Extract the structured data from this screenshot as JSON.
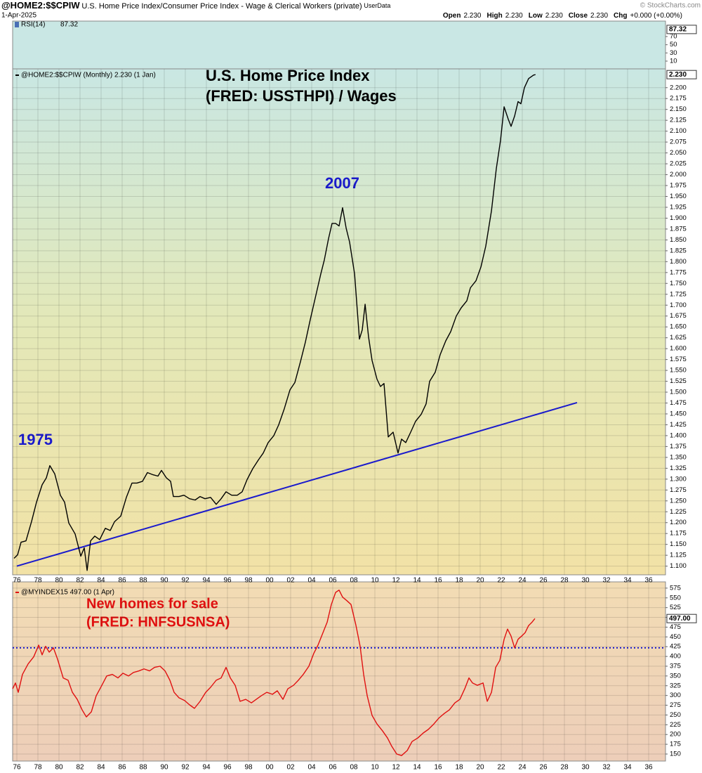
{
  "header": {
    "symbol": "@HOME2:$$CPIW",
    "description": "U.S. Home Price Index/Consumer Price Index - Wage & Clerical Workers (private)",
    "source": "UserData",
    "date": "1-Apr-2025",
    "copyright": "© StockCharts.com",
    "quote": [
      {
        "label": "Open",
        "value": "2.230"
      },
      {
        "label": "High",
        "value": "2.230"
      },
      {
        "label": "Low",
        "value": "2.230"
      },
      {
        "label": "Close",
        "value": "2.230"
      },
      {
        "label": "Chg",
        "value": "+0.000 (+0.00%)"
      }
    ]
  },
  "chart_data": [
    {
      "type": "indicator",
      "name": "RSI(14)",
      "last": 87.32,
      "ylim": [
        0,
        100
      ],
      "yticks": [
        70,
        50,
        30,
        10
      ],
      "grid": false
    },
    {
      "type": "line",
      "grid": true,
      "annotations": [
        "U.S. Home Price Index",
        "(FRED: USSTHPI) / Wages",
        "2007",
        "1975"
      ],
      "xlim": [
        1975.6,
        2037.6
      ],
      "ylim": [
        1.08,
        2.24
      ],
      "xticks": [
        {
          "value": 1976,
          "label": "76"
        },
        {
          "value": 1978,
          "label": "78"
        },
        {
          "value": 1980,
          "label": "80"
        },
        {
          "value": 1982,
          "label": "82"
        },
        {
          "value": 1984,
          "label": "84"
        },
        {
          "value": 1986,
          "label": "86"
        },
        {
          "value": 1988,
          "label": "88"
        },
        {
          "value": 1990,
          "label": "90"
        },
        {
          "value": 1992,
          "label": "92"
        },
        {
          "value": 1994,
          "label": "94"
        },
        {
          "value": 1996,
          "label": "96"
        },
        {
          "value": 1998,
          "label": "98"
        },
        {
          "value": 2000,
          "label": "00"
        },
        {
          "value": 2002,
          "label": "02"
        },
        {
          "value": 2004,
          "label": "04"
        },
        {
          "value": 2006,
          "label": "06"
        },
        {
          "value": 2008,
          "label": "08"
        },
        {
          "value": 2010,
          "label": "10"
        },
        {
          "value": 2012,
          "label": "12"
        },
        {
          "value": 2014,
          "label": "14"
        },
        {
          "value": 2016,
          "label": "16"
        },
        {
          "value": 2018,
          "label": "18"
        },
        {
          "value": 2020,
          "label": "20"
        },
        {
          "value": 2022,
          "label": "22"
        },
        {
          "value": 2024,
          "label": "24"
        },
        {
          "value": 2026,
          "label": "26"
        },
        {
          "value": 2028,
          "label": "28"
        },
        {
          "value": 2030,
          "label": "30"
        },
        {
          "value": 2032,
          "label": "32"
        },
        {
          "value": 2034,
          "label": "34"
        },
        {
          "value": 2036,
          "label": "36"
        }
      ],
      "yticks": [
        {
          "value": 1.1,
          "label": "1.100"
        },
        {
          "value": 1.125,
          "label": "1.125"
        },
        {
          "value": 1.15,
          "label": "1.150"
        },
        {
          "value": 1.175,
          "label": "1.175"
        },
        {
          "value": 1.2,
          "label": "1.200"
        },
        {
          "value": 1.225,
          "label": "1.225"
        },
        {
          "value": 1.25,
          "label": "1.250"
        },
        {
          "value": 1.275,
          "label": "1.275"
        },
        {
          "value": 1.3,
          "label": "1.300"
        },
        {
          "value": 1.325,
          "label": "1.325"
        },
        {
          "value": 1.35,
          "label": "1.350"
        },
        {
          "value": 1.375,
          "label": "1.375"
        },
        {
          "value": 1.4,
          "label": "1.400"
        },
        {
          "value": 1.425,
          "label": "1.425"
        },
        {
          "value": 1.45,
          "label": "1.450"
        },
        {
          "value": 1.475,
          "label": "1.475"
        },
        {
          "value": 1.5,
          "label": "1.500"
        },
        {
          "value": 1.525,
          "label": "1.525"
        },
        {
          "value": 1.55,
          "label": "1.550"
        },
        {
          "value": 1.575,
          "label": "1.575"
        },
        {
          "value": 1.6,
          "label": "1.600"
        },
        {
          "value": 1.625,
          "label": "1.625"
        },
        {
          "value": 1.65,
          "label": "1.650"
        },
        {
          "value": 1.675,
          "label": "1.675"
        },
        {
          "value": 1.7,
          "label": "1.700"
        },
        {
          "value": 1.725,
          "label": "1.725"
        },
        {
          "value": 1.75,
          "label": "1.750"
        },
        {
          "value": 1.775,
          "label": "1.775"
        },
        {
          "value": 1.8,
          "label": "1.800"
        },
        {
          "value": 1.825,
          "label": "1.825"
        },
        {
          "value": 1.85,
          "label": "1.850"
        },
        {
          "value": 1.875,
          "label": "1.875"
        },
        {
          "value": 1.9,
          "label": "1.900"
        },
        {
          "value": 1.925,
          "label": "1.925"
        },
        {
          "value": 1.95,
          "label": "1.950"
        },
        {
          "value": 1.975,
          "label": "1.975"
        },
        {
          "value": 2.0,
          "label": "2.000"
        },
        {
          "value": 2.025,
          "label": "2.025"
        },
        {
          "value": 2.05,
          "label": "2.050"
        },
        {
          "value": 2.075,
          "label": "2.075"
        },
        {
          "value": 2.1,
          "label": "2.100"
        },
        {
          "value": 2.125,
          "label": "2.125"
        },
        {
          "value": 2.15,
          "label": "2.150"
        },
        {
          "value": 2.175,
          "label": "2.175"
        },
        {
          "value": 2.2,
          "label": "2.200"
        }
      ],
      "last": {
        "value": 2.23,
        "label": "2.230"
      },
      "x": [
        1975.73,
        1976.07,
        1976.4,
        1976.87,
        1977.4,
        1977.87,
        1978.4,
        1978.8,
        1979.13,
        1979.6,
        1980.13,
        1980.53,
        1980.93,
        1981.53,
        1982.07,
        1982.4,
        1982.67,
        1983,
        1983.4,
        1983.87,
        1984.4,
        1984.87,
        1985.27,
        1985.87,
        1986.4,
        1986.93,
        1987.4,
        1987.93,
        1988.4,
        1988.93,
        1989.4,
        1989.73,
        1990.2,
        1990.6,
        1990.87,
        1991.4,
        1991.87,
        1992.4,
        1992.93,
        1993.4,
        1993.87,
        1994.4,
        1994.93,
        1995.4,
        1995.87,
        1996.4,
        1996.93,
        1997.4,
        1997.87,
        1998.4,
        1998.93,
        1999.4,
        1999.87,
        2000.4,
        2000.87,
        2001.4,
        2001.93,
        2002.4,
        2002.93,
        2003.4,
        2003.87,
        2004.4,
        2004.87,
        2005.2,
        2005.6,
        2005.93,
        2006.27,
        2006.6,
        2006.93,
        2007.27,
        2007.6,
        2008.07,
        2008.53,
        2008.8,
        2009.07,
        2009.4,
        2009.73,
        2010.2,
        2010.53,
        2010.87,
        2011.27,
        2011.73,
        2012.2,
        2012.53,
        2012.93,
        2013.4,
        2013.87,
        2014.4,
        2014.87,
        2015.2,
        2015.73,
        2016.2,
        2016.73,
        2017.2,
        2017.73,
        2018.2,
        2018.73,
        2019.07,
        2019.6,
        2020.07,
        2020.53,
        2021.07,
        2021.53,
        2021.93,
        2022.27,
        2022.67,
        2022.93,
        2023.27,
        2023.6,
        2023.87,
        2024.2,
        2024.6,
        2025.07,
        2025.25
      ],
      "series": [
        {
          "name": "@HOME2:$$CPIW (Monthly) 2.230 (1 Jan)",
          "color": "#000000",
          "values": [
            1.118,
            1.126,
            1.155,
            1.158,
            1.203,
            1.247,
            1.287,
            1.303,
            1.331,
            1.312,
            1.263,
            1.247,
            1.199,
            1.174,
            1.123,
            1.142,
            1.09,
            1.158,
            1.169,
            1.161,
            1.187,
            1.182,
            1.202,
            1.215,
            1.258,
            1.291,
            1.291,
            1.295,
            1.315,
            1.31,
            1.307,
            1.32,
            1.303,
            1.295,
            1.26,
            1.26,
            1.263,
            1.255,
            1.252,
            1.26,
            1.255,
            1.258,
            1.242,
            1.255,
            1.271,
            1.263,
            1.263,
            1.271,
            1.299,
            1.324,
            1.344,
            1.36,
            1.384,
            1.4,
            1.425,
            1.462,
            1.505,
            1.522,
            1.57,
            1.615,
            1.667,
            1.723,
            1.772,
            1.804,
            1.853,
            1.888,
            1.888,
            1.882,
            1.924,
            1.877,
            1.845,
            1.772,
            1.622,
            1.643,
            1.702,
            1.627,
            1.573,
            1.53,
            1.513,
            1.52,
            1.397,
            1.408,
            1.36,
            1.392,
            1.384,
            1.408,
            1.433,
            1.449,
            1.473,
            1.525,
            1.546,
            1.586,
            1.618,
            1.639,
            1.675,
            1.694,
            1.71,
            1.74,
            1.756,
            1.788,
            1.836,
            1.917,
            2.014,
            2.079,
            2.156,
            2.127,
            2.111,
            2.135,
            2.168,
            2.163,
            2.2,
            2.221,
            2.229,
            2.23
          ]
        }
      ],
      "trendline": {
        "color": "#1a1acc",
        "x": [
          1976,
          2029.2
        ],
        "values": [
          1.1,
          1.476
        ]
      }
    },
    {
      "type": "line",
      "grid": true,
      "annotations": [
        "New homes for sale",
        "(FRED: HNFSUSNSA)"
      ],
      "xlim": [
        1975.6,
        2037.6
      ],
      "ylim": [
        132,
        591
      ],
      "xticks": [
        {
          "value": 1976,
          "label": "76"
        },
        {
          "value": 1978,
          "label": "78"
        },
        {
          "value": 1980,
          "label": "80"
        },
        {
          "value": 1982,
          "label": "82"
        },
        {
          "value": 1984,
          "label": "84"
        },
        {
          "value": 1986,
          "label": "86"
        },
        {
          "value": 1988,
          "label": "88"
        },
        {
          "value": 1990,
          "label": "90"
        },
        {
          "value": 1992,
          "label": "92"
        },
        {
          "value": 1994,
          "label": "94"
        },
        {
          "value": 1996,
          "label": "96"
        },
        {
          "value": 1998,
          "label": "98"
        },
        {
          "value": 2000,
          "label": "00"
        },
        {
          "value": 2002,
          "label": "02"
        },
        {
          "value": 2004,
          "label": "04"
        },
        {
          "value": 2006,
          "label": "06"
        },
        {
          "value": 2008,
          "label": "08"
        },
        {
          "value": 2010,
          "label": "10"
        },
        {
          "value": 2012,
          "label": "12"
        },
        {
          "value": 2014,
          "label": "14"
        },
        {
          "value": 2016,
          "label": "16"
        },
        {
          "value": 2018,
          "label": "18"
        },
        {
          "value": 2020,
          "label": "20"
        },
        {
          "value": 2022,
          "label": "22"
        },
        {
          "value": 2024,
          "label": "24"
        },
        {
          "value": 2026,
          "label": "26"
        },
        {
          "value": 2028,
          "label": "28"
        },
        {
          "value": 2030,
          "label": "30"
        },
        {
          "value": 2032,
          "label": "32"
        },
        {
          "value": 2034,
          "label": "34"
        },
        {
          "value": 2036,
          "label": "36"
        }
      ],
      "yticks": [
        150,
        175,
        200,
        225,
        250,
        275,
        300,
        325,
        350,
        375,
        400,
        425,
        450,
        475,
        500,
        525,
        550,
        575
      ],
      "last": {
        "value": 497,
        "label": "497.00"
      },
      "reference_line": {
        "value": 422,
        "color": "#1a1acc"
      },
      "x": [
        1975.6,
        1975.87,
        1976.13,
        1976.53,
        1977.07,
        1977.6,
        1978.07,
        1978.4,
        1978.73,
        1979.07,
        1979.47,
        1979.87,
        1980.4,
        1980.87,
        1981.27,
        1981.73,
        1982.2,
        1982.6,
        1983.07,
        1983.53,
        1984.07,
        1984.53,
        1985.07,
        1985.6,
        1986.07,
        1986.6,
        1987.07,
        1987.6,
        1988.07,
        1988.6,
        1989.07,
        1989.6,
        1990.07,
        1990.53,
        1990.93,
        1991.4,
        1991.93,
        1992.4,
        1992.87,
        1993.4,
        1993.93,
        1994.4,
        1994.93,
        1995.4,
        1995.87,
        1996.27,
        1996.73,
        1997.2,
        1997.73,
        1998.27,
        1998.73,
        1999.2,
        1999.73,
        2000.27,
        2000.73,
        2001.27,
        2001.73,
        2002.27,
        2002.73,
        2003.2,
        2003.73,
        2004.2,
        2004.6,
        2005.07,
        2005.47,
        2005.87,
        2006.27,
        2006.6,
        2006.93,
        2007.33,
        2007.73,
        2008.2,
        2008.6,
        2008.93,
        2009.27,
        2009.73,
        2010.2,
        2010.73,
        2011.2,
        2011.6,
        2012.07,
        2012.53,
        2013.07,
        2013.53,
        2014.07,
        2014.6,
        2015.07,
        2015.6,
        2016.07,
        2016.6,
        2017.07,
        2017.6,
        2018.07,
        2018.53,
        2018.93,
        2019.27,
        2019.73,
        2020.27,
        2020.67,
        2021.07,
        2021.47,
        2021.87,
        2022.27,
        2022.6,
        2022.93,
        2023.27,
        2023.6,
        2023.93,
        2024.27,
        2024.6,
        2024.93,
        2025.2
      ],
      "series": [
        {
          "name": "@MYINDEX15 497.00 (1 Apr)",
          "color": "#e01010",
          "values": [
            317,
            332,
            308,
            354,
            381,
            399,
            429,
            404,
            426,
            411,
            422,
            393,
            345,
            339,
            308,
            290,
            263,
            245,
            258,
            299,
            326,
            350,
            354,
            345,
            357,
            350,
            359,
            363,
            368,
            363,
            372,
            375,
            363,
            339,
            308,
            294,
            287,
            276,
            267,
            285,
            308,
            321,
            339,
            345,
            372,
            345,
            326,
            285,
            290,
            281,
            290,
            299,
            308,
            303,
            312,
            290,
            317,
            326,
            339,
            354,
            375,
            408,
            429,
            461,
            488,
            533,
            564,
            570,
            552,
            543,
            533,
            480,
            426,
            354,
            299,
            249,
            227,
            209,
            191,
            170,
            150,
            146,
            159,
            182,
            191,
            204,
            213,
            227,
            242,
            254,
            263,
            281,
            290,
            317,
            345,
            332,
            326,
            332,
            285,
            308,
            372,
            390,
            444,
            470,
            452,
            422,
            444,
            452,
            461,
            479,
            488,
            497
          ]
        }
      ]
    }
  ]
}
